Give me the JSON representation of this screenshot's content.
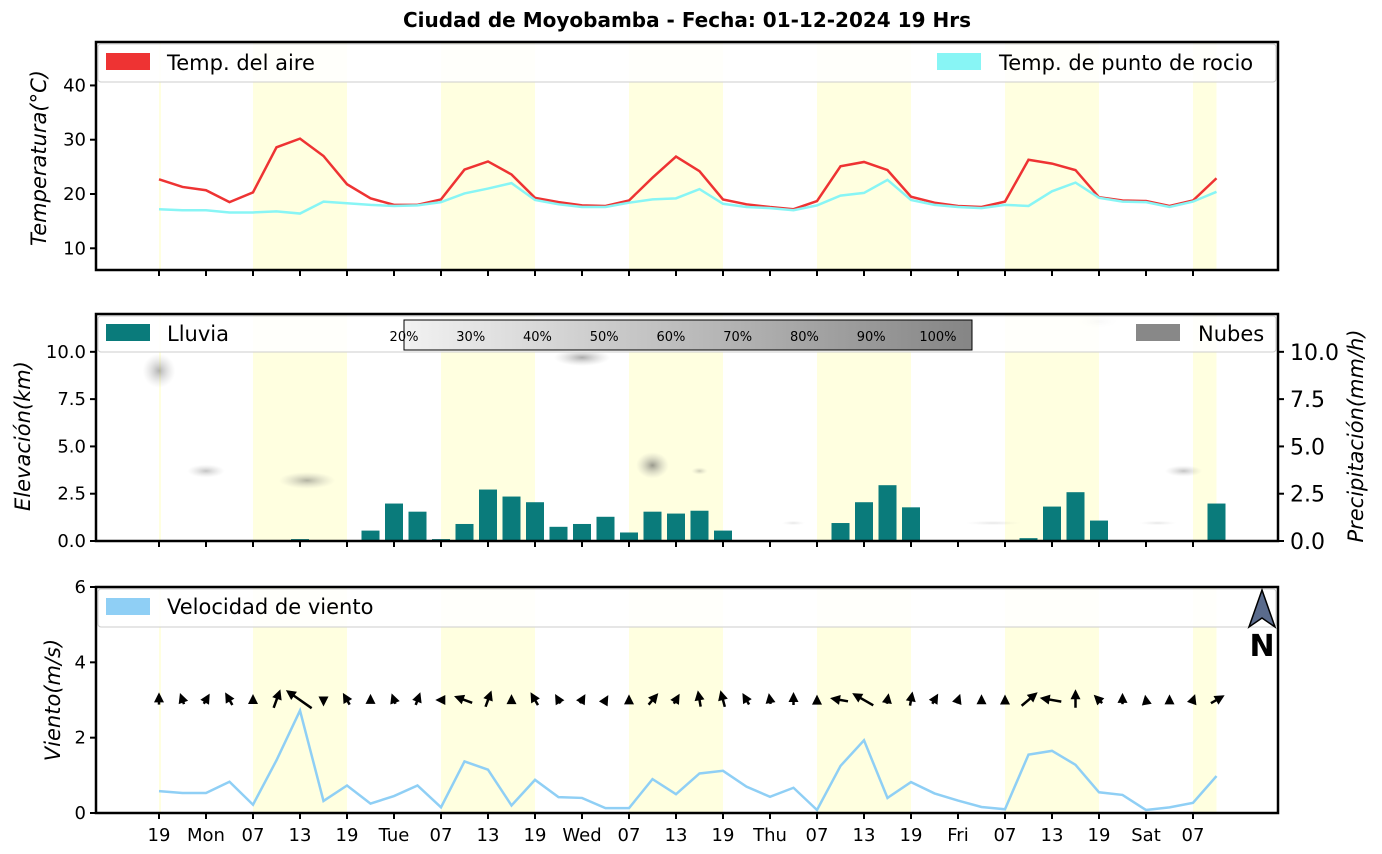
{
  "title": "Ciudad de Moyobamba   -   Fecha: 01-12-2024 19 Hrs",
  "x_tick_labels": [
    "19",
    "Mon",
    "07",
    "13",
    "19",
    "Tue",
    "07",
    "13",
    "19",
    "Wed",
    "07",
    "13",
    "19",
    "Thu",
    "07",
    "13",
    "19",
    "Fri",
    "07",
    "13",
    "19",
    "Sat",
    "07"
  ],
  "daylight_bands": [
    [
      0,
      0
    ],
    [
      4,
      8
    ],
    [
      12,
      16
    ],
    [
      20,
      24
    ],
    [
      28,
      32
    ],
    [
      36,
      40
    ],
    [
      44,
      45
    ]
  ],
  "colors": {
    "air": "#ee3333",
    "dew": "#88f5f5",
    "rain": "#0a7b7b",
    "cloud": "#888888",
    "wind": "#8fcff5",
    "band": "#ffffe0"
  },
  "chart_data": [
    {
      "type": "line",
      "ylabel": "Temperatura(°C)",
      "ylim": [
        6,
        48
      ],
      "yticks": [
        10,
        20,
        30,
        40
      ],
      "x_step_hours": 3,
      "series": [
        {
          "name": "Temp. del aire",
          "values": [
            22.7,
            21.3,
            20.7,
            18.5,
            20.3,
            28.6,
            30.2,
            27.0,
            21.8,
            19.2,
            18.0,
            18.0,
            19.0,
            24.5,
            26.0,
            23.6,
            19.3,
            18.5,
            17.9,
            17.8,
            18.8,
            23.0,
            26.9,
            24.2,
            19.0,
            18.1,
            17.6,
            17.2,
            18.7,
            25.1,
            25.9,
            24.4,
            19.5,
            18.4,
            17.8,
            17.6,
            18.6,
            26.3,
            25.6,
            24.4,
            19.4,
            18.8,
            18.7,
            17.8,
            18.8,
            22.9
          ]
        },
        {
          "name": "Temp. de punto de rocio",
          "values": [
            17.2,
            17.0,
            17.0,
            16.6,
            16.6,
            16.8,
            16.4,
            18.6,
            18.3,
            18.0,
            17.8,
            17.9,
            18.5,
            20.1,
            21.0,
            22.0,
            18.9,
            18.1,
            17.6,
            17.6,
            18.4,
            19.0,
            19.2,
            20.9,
            18.2,
            17.6,
            17.4,
            17.0,
            17.9,
            19.7,
            20.2,
            22.6,
            18.9,
            18.0,
            17.6,
            17.4,
            18.0,
            17.8,
            20.5,
            22.1,
            19.3,
            18.6,
            18.5,
            17.6,
            18.6,
            20.4
          ]
        }
      ]
    },
    {
      "type": "bar",
      "ylabel": "Elevación(km)",
      "ylabel_right": "Precipitación(mm/h)",
      "ylim": [
        0,
        12
      ],
      "yticks": [
        0.0,
        2.5,
        5.0,
        7.5,
        10.0
      ],
      "series": [
        {
          "name": "Lluvia",
          "values": [
            0,
            0,
            0,
            0,
            0,
            0,
            0.1,
            0.05,
            0.05,
            0.55,
            1.98,
            1.55,
            0.1,
            0.9,
            2.72,
            2.35,
            2.05,
            0.75,
            0.9,
            1.28,
            0.45,
            1.55,
            1.45,
            1.6,
            0.55,
            0,
            0,
            0,
            0,
            0.95,
            2.05,
            2.95,
            1.78,
            0,
            0,
            0,
            0,
            0.15,
            1.82,
            2.58,
            1.08,
            0.05,
            0.05,
            0.05,
            0.05,
            1.98
          ]
        }
      ],
      "legend_extra": "Nubes",
      "colorbar_labels": [
        "20%",
        "30%",
        "40%",
        "50%",
        "60%",
        "70%",
        "80%",
        "90%",
        "100%"
      ],
      "cloud_patches": [
        {
          "x": 0.0,
          "y": 9.0,
          "w": 0.7,
          "h": 0.9,
          "o": 0.45
        },
        {
          "x": 2.0,
          "y": 3.7,
          "w": 0.8,
          "h": 0.35,
          "o": 0.35
        },
        {
          "x": 6.3,
          "y": 3.2,
          "w": 1.2,
          "h": 0.45,
          "o": 0.45
        },
        {
          "x": 18.0,
          "y": 9.7,
          "w": 1.2,
          "h": 0.45,
          "o": 0.5
        },
        {
          "x": 21.0,
          "y": 4.0,
          "w": 0.7,
          "h": 0.7,
          "o": 0.6
        },
        {
          "x": 23.0,
          "y": 3.7,
          "w": 0.35,
          "h": 0.2,
          "o": 0.3
        },
        {
          "x": 43.6,
          "y": 3.7,
          "w": 0.8,
          "h": 0.3,
          "o": 0.35
        },
        {
          "x": 40.0,
          "y": 11.6,
          "w": 0.9,
          "h": 0.35,
          "o": 0.25
        },
        {
          "x": 27.0,
          "y": 0.95,
          "w": 0.5,
          "h": 0.12,
          "o": 0.15
        },
        {
          "x": 35.5,
          "y": 0.95,
          "w": 1.2,
          "h": 0.12,
          "o": 0.15
        },
        {
          "x": 42.5,
          "y": 0.95,
          "w": 0.8,
          "h": 0.12,
          "o": 0.15
        }
      ]
    },
    {
      "type": "line",
      "ylabel": "Viento(m/s)",
      "ylim": [
        0,
        6
      ],
      "yticks": [
        0,
        2,
        4,
        6
      ],
      "series": [
        {
          "name": "Velocidad de viento",
          "values": [
            0.58,
            0.53,
            0.53,
            0.83,
            0.22,
            1.4,
            2.72,
            0.32,
            0.73,
            0.25,
            0.45,
            0.73,
            0.15,
            1.37,
            1.15,
            0.2,
            0.88,
            0.42,
            0.4,
            0.13,
            0.13,
            0.9,
            0.5,
            1.05,
            1.12,
            0.7,
            0.43,
            0.67,
            0.08,
            1.25,
            1.93,
            0.4,
            0.82,
            0.52,
            0.33,
            0.16,
            0.1,
            1.55,
            1.65,
            1.28,
            0.55,
            0.48,
            0.08,
            0.15,
            0.27,
            0.98
          ]
        }
      ],
      "wind_dir_deg": [
        270,
        250,
        300,
        240,
        270,
        290,
        215,
        90,
        240,
        270,
        250,
        290,
        180,
        200,
        290,
        270,
        240,
        240,
        300,
        300,
        270,
        310,
        300,
        260,
        255,
        240,
        260,
        270,
        270,
        190,
        210,
        280,
        280,
        300,
        290,
        270,
        270,
        320,
        190,
        270,
        225,
        270,
        260,
        270,
        290,
        330
      ],
      "north_label": "N"
    }
  ]
}
